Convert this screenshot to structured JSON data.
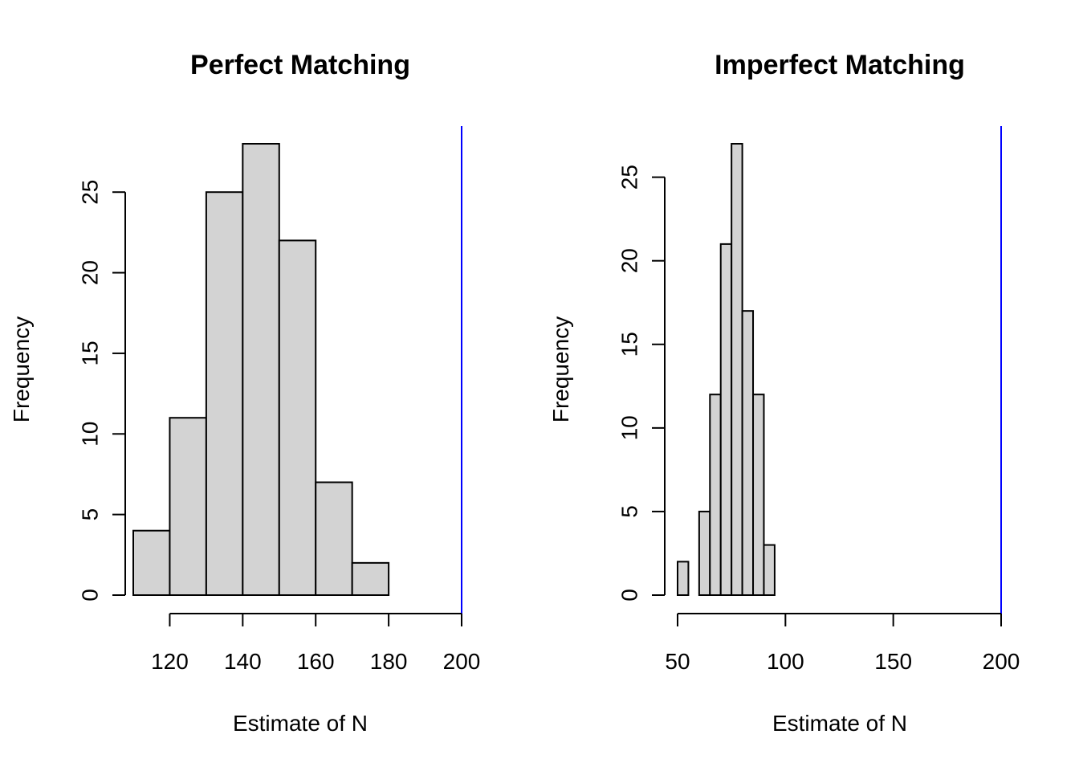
{
  "chart_data": [
    {
      "type": "bar",
      "subtype": "histogram",
      "title": "Perfect Matching",
      "xlabel": "Estimate of N",
      "ylabel": "Frequency",
      "bins": [
        {
          "x0": 110,
          "x1": 120,
          "count": 4
        },
        {
          "x0": 120,
          "x1": 130,
          "count": 11
        },
        {
          "x0": 130,
          "x1": 140,
          "count": 25
        },
        {
          "x0": 140,
          "x1": 150,
          "count": 28
        },
        {
          "x0": 150,
          "x1": 160,
          "count": 22
        },
        {
          "x0": 160,
          "x1": 170,
          "count": 7
        },
        {
          "x0": 170,
          "x1": 180,
          "count": 2
        }
      ],
      "xlim": [
        110,
        200
      ],
      "xaxis_range": [
        120,
        200
      ],
      "xticks": [
        120,
        140,
        160,
        180,
        200
      ],
      "ylim": [
        0,
        28
      ],
      "yaxis_range": [
        0,
        25
      ],
      "yticks": [
        0,
        5,
        10,
        15,
        20,
        25
      ],
      "reference_line": {
        "x": 200,
        "color": "#0000ff"
      },
      "bar_color": "#d3d3d3",
      "grid": false
    },
    {
      "type": "bar",
      "subtype": "histogram",
      "title": "Imperfect Matching",
      "xlabel": "Estimate of N",
      "ylabel": "Frequency",
      "bins": [
        {
          "x0": 50,
          "x1": 55,
          "count": 2
        },
        {
          "x0": 55,
          "x1": 60,
          "count": 0
        },
        {
          "x0": 60,
          "x1": 65,
          "count": 5
        },
        {
          "x0": 65,
          "x1": 70,
          "count": 12
        },
        {
          "x0": 70,
          "x1": 75,
          "count": 21
        },
        {
          "x0": 75,
          "x1": 80,
          "count": 27
        },
        {
          "x0": 80,
          "x1": 85,
          "count": 17
        },
        {
          "x0": 85,
          "x1": 90,
          "count": 12
        },
        {
          "x0": 90,
          "x1": 95,
          "count": 3
        }
      ],
      "xlim": [
        50,
        200
      ],
      "xaxis_range": [
        50,
        200
      ],
      "xticks": [
        50,
        100,
        150,
        200
      ],
      "ylim": [
        0,
        27
      ],
      "yaxis_range": [
        0,
        25
      ],
      "yticks": [
        0,
        5,
        10,
        15,
        20,
        25
      ],
      "reference_line": {
        "x": 200,
        "color": "#0000ff"
      },
      "bar_color": "#d3d3d3",
      "grid": false
    }
  ]
}
